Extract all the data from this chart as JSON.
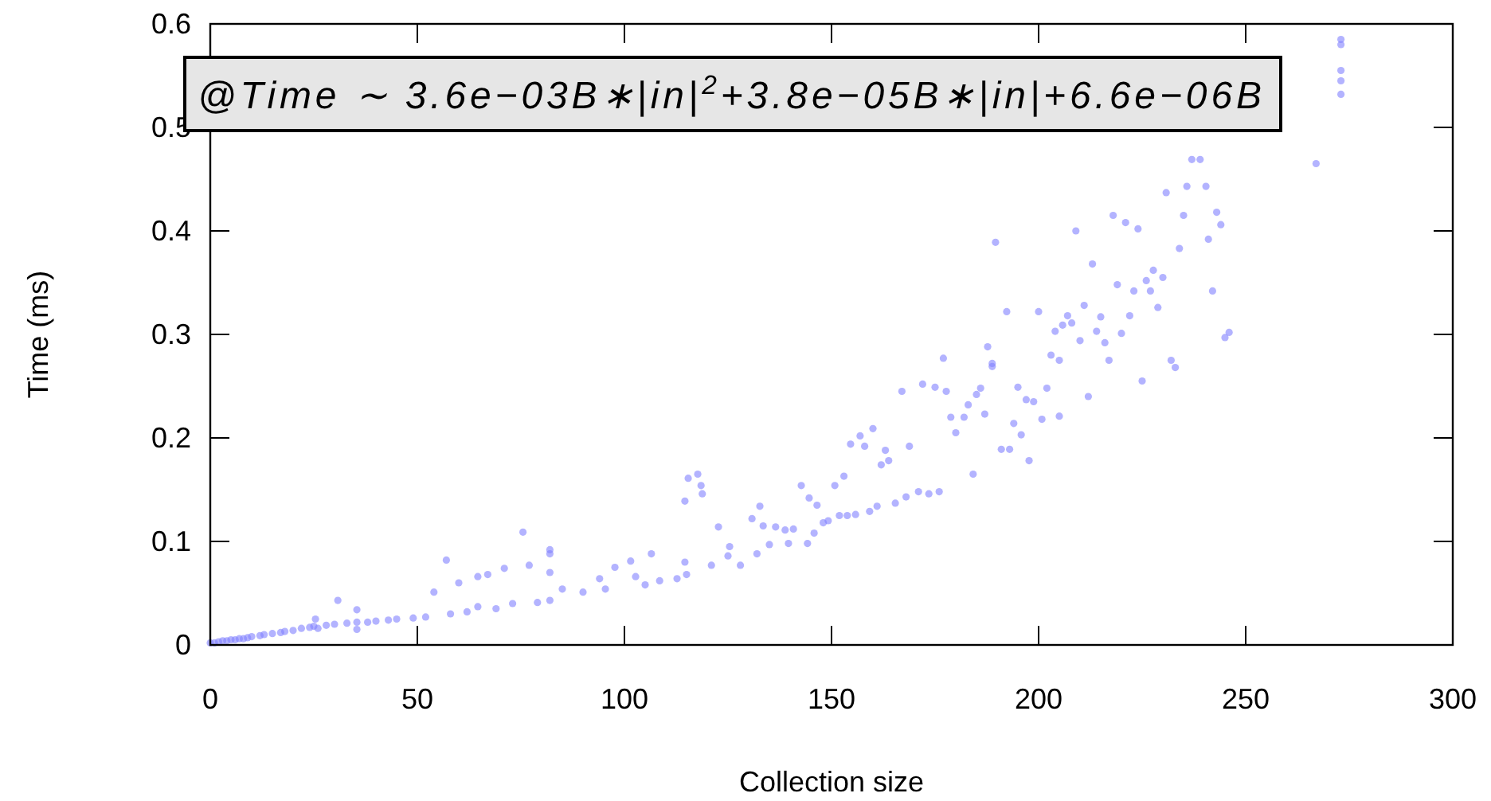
{
  "chart_data": {
    "type": "scatter",
    "xlabel": "Collection size",
    "ylabel": "Time (ms)",
    "annotations": [
      "@Time ∼ 3.6e−03B∗|in|$^{2}$+3.8e−05B∗|in|+6.6e−06B"
    ],
    "xlim": [
      0,
      300
    ],
    "ylim": [
      0,
      0.6
    ],
    "xticks": [
      0,
      50,
      100,
      150,
      200,
      250,
      300
    ],
    "yticks": [
      0,
      0.1,
      0.2,
      0.3,
      0.4,
      0.5,
      0.6
    ],
    "grid": false,
    "marker": "circle",
    "series": [
      {
        "color": "#8080ff",
        "x": [
          0,
          1,
          2,
          3,
          4,
          5,
          6,
          7,
          8,
          9,
          10,
          12,
          13,
          15,
          17,
          18,
          20,
          22,
          24,
          25,
          25.4,
          26,
          28,
          30,
          30.8,
          33,
          35.4,
          35.4,
          35.4,
          38,
          40,
          43,
          45,
          49,
          52,
          54,
          57,
          58,
          60,
          62,
          64.6,
          64.6,
          67,
          69,
          71,
          73,
          75.5,
          77,
          79,
          82,
          82,
          82,
          82,
          85,
          90,
          94,
          95.4,
          97.7,
          101.5,
          102.7,
          105,
          106.5,
          108.5,
          112.7,
          114.6,
          114.6,
          115,
          115.4,
          117.7,
          118.5,
          118.8,
          121,
          122.7,
          125,
          125.4,
          128,
          130.8,
          132,
          132.7,
          133.5,
          135,
          136.5,
          138.8,
          139.6,
          140.8,
          142.7,
          144.2,
          144.6,
          145.8,
          146.5,
          148,
          149.2,
          150.8,
          151.9,
          153,
          153.8,
          154.6,
          155.8,
          156.9,
          158,
          159.2,
          160,
          161,
          162,
          163,
          163.8,
          165.4,
          167,
          168,
          168.8,
          171,
          172,
          173.5,
          175,
          176,
          177,
          177.7,
          178.8,
          180,
          182,
          183,
          184.2,
          185,
          186,
          187,
          187.7,
          188.8,
          188.8,
          189.6,
          191,
          192.3,
          193,
          194,
          195,
          195.8,
          197,
          197.7,
          198.8,
          200,
          200.8,
          202,
          203,
          204,
          205,
          205,
          205.8,
          207,
          208,
          209,
          210,
          211,
          212,
          213,
          214,
          215,
          216,
          217,
          218,
          219,
          220,
          221,
          222,
          223,
          224,
          225,
          226,
          227,
          227.7,
          228.8,
          230,
          230.8,
          232,
          233,
          234,
          235,
          235.8,
          237,
          239,
          240.4,
          241,
          242,
          243,
          244,
          245,
          246,
          267,
          273,
          273,
          273,
          273,
          273
        ],
        "values": [
          0.002,
          0.002,
          0.003,
          0.004,
          0.004,
          0.005,
          0.005,
          0.006,
          0.006,
          0.007,
          0.008,
          0.009,
          0.01,
          0.011,
          0.012,
          0.013,
          0.014,
          0.016,
          0.017,
          0.018,
          0.025,
          0.016,
          0.019,
          0.02,
          0.043,
          0.021,
          0.034,
          0.015,
          0.022,
          0.022,
          0.023,
          0.024,
          0.025,
          0.026,
          0.027,
          0.051,
          0.082,
          0.03,
          0.06,
          0.032,
          0.037,
          0.066,
          0.068,
          0.035,
          0.074,
          0.04,
          0.109,
          0.077,
          0.041,
          0.092,
          0.088,
          0.07,
          0.043,
          0.054,
          0.051,
          0.064,
          0.054,
          0.075,
          0.081,
          0.066,
          0.058,
          0.088,
          0.062,
          0.064,
          0.08,
          0.139,
          0.068,
          0.161,
          0.165,
          0.154,
          0.146,
          0.077,
          0.114,
          0.086,
          0.095,
          0.077,
          0.122,
          0.088,
          0.134,
          0.115,
          0.097,
          0.114,
          0.111,
          0.098,
          0.112,
          0.154,
          0.098,
          0.142,
          0.108,
          0.135,
          0.118,
          0.12,
          0.154,
          0.125,
          0.163,
          0.125,
          0.194,
          0.126,
          0.202,
          0.192,
          0.129,
          0.209,
          0.134,
          0.174,
          0.188,
          0.178,
          0.137,
          0.245,
          0.143,
          0.192,
          0.148,
          0.252,
          0.146,
          0.249,
          0.148,
          0.277,
          0.245,
          0.22,
          0.205,
          0.22,
          0.232,
          0.165,
          0.242,
          0.248,
          0.223,
          0.288,
          0.269,
          0.272,
          0.389,
          0.189,
          0.322,
          0.189,
          0.214,
          0.249,
          0.203,
          0.237,
          0.178,
          0.235,
          0.322,
          0.218,
          0.248,
          0.28,
          0.303,
          0.221,
          0.275,
          0.309,
          0.318,
          0.311,
          0.4,
          0.294,
          0.328,
          0.24,
          0.368,
          0.303,
          0.317,
          0.292,
          0.275,
          0.415,
          0.348,
          0.301,
          0.408,
          0.318,
          0.342,
          0.402,
          0.255,
          0.352,
          0.342,
          0.362,
          0.326,
          0.355,
          0.437,
          0.275,
          0.268,
          0.383,
          0.415,
          0.443,
          0.469,
          0.469,
          0.443,
          0.392,
          0.342,
          0.418,
          0.406,
          0.297,
          0.302,
          0.465,
          0.585,
          0.58,
          0.555,
          0.545,
          0.532
        ]
      }
    ]
  }
}
